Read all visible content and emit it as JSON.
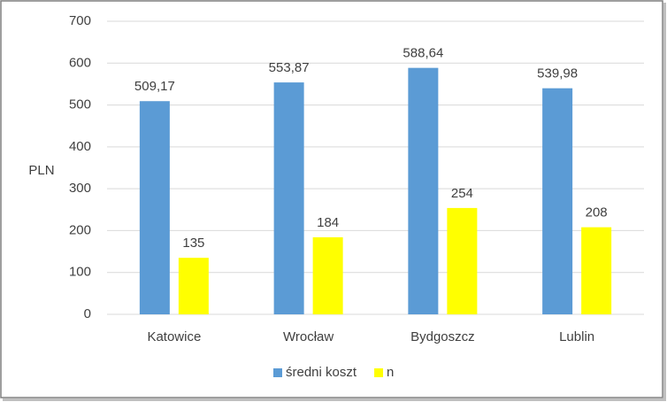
{
  "chart_data": {
    "type": "bar",
    "y_axis_label": "PLN",
    "categories": [
      "Katowice",
      "Wrocław",
      "Bydgoszcz",
      "Lublin"
    ],
    "series": [
      {
        "name": "średni koszt",
        "color": "#5b9bd5",
        "values": [
          509.17,
          553.87,
          588.64,
          539.98
        ],
        "value_labels": [
          "509,17",
          "553,87",
          "588,64",
          "539,98"
        ]
      },
      {
        "name": "n",
        "color": "#ffff00",
        "values": [
          135,
          184,
          254,
          208
        ]
      }
    ],
    "ylim": [
      0,
      700
    ],
    "yticks": [
      0,
      100,
      200,
      300,
      400,
      500,
      600,
      700
    ],
    "grid": true
  }
}
